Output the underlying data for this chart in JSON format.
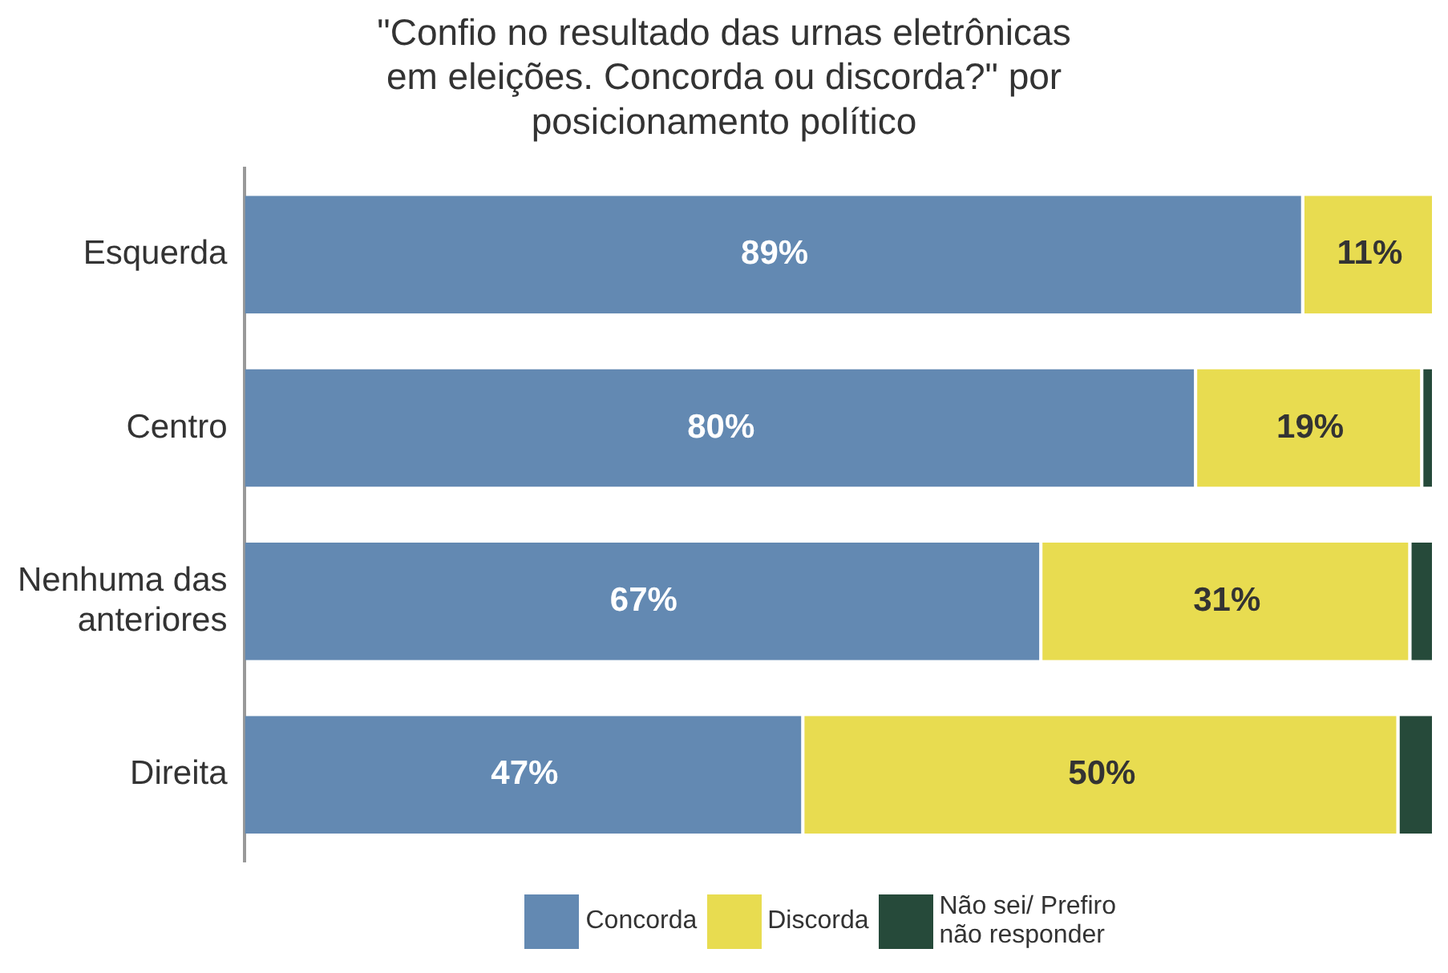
{
  "chart_data": {
    "type": "bar",
    "orientation": "horizontal",
    "stacked": true,
    "title": "\"Confio no resultado das urnas eletrônicas em eleições. Concorda ou discorda?\" por posicionamento político",
    "categories": [
      "Esquerda",
      "Centro",
      "Nenhuma das anteriores",
      "Direita"
    ],
    "series": [
      {
        "name": "Concorda",
        "color": "#6389b2",
        "values": [
          89,
          80,
          67,
          47
        ],
        "value_labels": [
          "89%",
          "80%",
          "67%",
          "47%"
        ]
      },
      {
        "name": "Discorda",
        "color": "#e8dc50",
        "values": [
          11,
          19,
          31,
          50
        ],
        "value_labels": [
          "11%",
          "19%",
          "31%",
          "50%"
        ]
      },
      {
        "name": "Não sei/ Prefiro não responder",
        "color": "#264a3a",
        "values": [
          0,
          1,
          2,
          3
        ],
        "value_labels": [
          null,
          null,
          null,
          null
        ]
      }
    ],
    "legend": "bottom"
  }
}
